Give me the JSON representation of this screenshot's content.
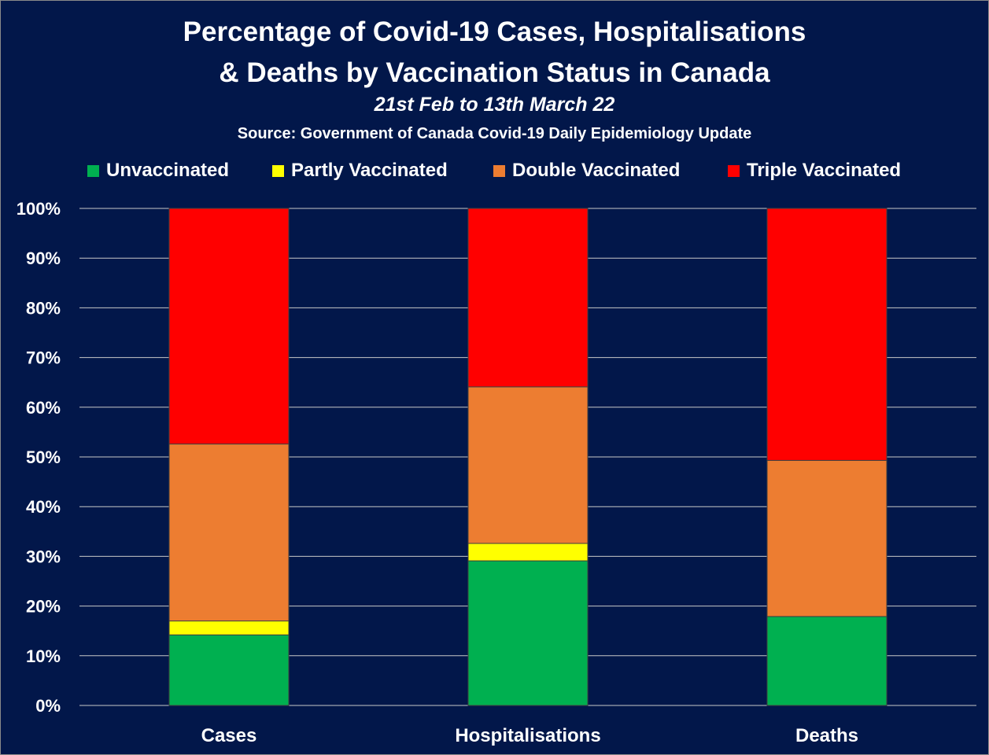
{
  "title_line1": "Percentage of Covid-19 Cases, Hospitalisations",
  "title_line2": "& Deaths by Vaccination Status in Canada",
  "subtitle": "21st Feb to 13th March 22",
  "source": "Source: Government of Canada  Covid-19 Daily Epidemiology Update",
  "colors": {
    "background": "#02174a",
    "gridline": "#c8c8c8",
    "unvaccinated": "#00b050",
    "partly": "#ffff00",
    "double": "#ed7d31",
    "triple": "#ff0000"
  },
  "chart_data": {
    "type": "bar",
    "stacked": true,
    "title": "Percentage of Covid-19 Cases, Hospitalisations & Deaths by Vaccination Status in Canada",
    "subtitle": "21st Feb to 13th March 22",
    "categories": [
      "Cases",
      "Hospitalisations",
      "Deaths"
    ],
    "series": [
      {
        "name": "Unvaccinated",
        "color": "#00b050",
        "values": [
          14.2,
          29.1,
          17.9
        ]
      },
      {
        "name": "Partly Vaccinated",
        "color": "#ffff00",
        "values": [
          2.8,
          3.5,
          0.0
        ]
      },
      {
        "name": "Double Vaccinated",
        "color": "#ed7d31",
        "values": [
          35.6,
          31.5,
          31.4
        ]
      },
      {
        "name": "Triple Vaccinated",
        "color": "#ff0000",
        "values": [
          47.4,
          35.9,
          50.7
        ]
      }
    ],
    "ylim": [
      0,
      100
    ],
    "yticks": [
      "0%",
      "10%",
      "20%",
      "30%",
      "40%",
      "50%",
      "60%",
      "70%",
      "80%",
      "90%",
      "100%"
    ],
    "xlabel": "",
    "ylabel": "",
    "grid": true,
    "legend_position": "top"
  }
}
